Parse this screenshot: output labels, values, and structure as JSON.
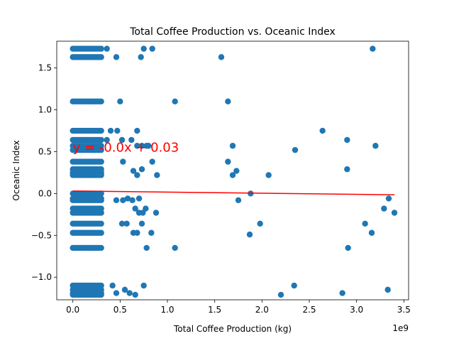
{
  "chart_data": {
    "type": "scatter",
    "title": "Total Coffee Production vs. Oceanic Index",
    "xlabel": "Total Coffee Production (kg)",
    "ylabel": "Oceanic Index",
    "x_offset_label": "1e9",
    "xlim": [
      -0.17,
      3.55
    ],
    "ylim": [
      -1.27,
      1.82
    ],
    "x_ticks": [
      0.0,
      0.5,
      1.0,
      1.5,
      2.0,
      2.5,
      3.0,
      3.5
    ],
    "x_tick_labels": [
      "0.0",
      "0.5",
      "1.0",
      "1.5",
      "2.0",
      "2.5",
      "3.0",
      "3.5"
    ],
    "y_ticks": [
      -1.0,
      -0.5,
      0.0,
      0.5,
      1.0,
      1.5
    ],
    "y_tick_labels": [
      "−1.0",
      "−0.5",
      "0.0",
      "0.5",
      "1.0",
      "1.5"
    ],
    "grid": false,
    "point_color": "#1f77b4",
    "line_color": "#ff0000",
    "annotation": {
      "text": "y = -0.0x + 0.03",
      "x": 0.0,
      "y": 0.5,
      "color": "#ff0000"
    },
    "regression": {
      "slope": -0.0133,
      "intercept": 0.03,
      "x": [
        0.0,
        3.4
      ]
    },
    "cluster_y_levels": [
      1.73,
      1.63,
      1.1,
      0.75,
      0.64,
      0.57,
      0.52,
      0.38,
      0.29,
      0.25,
      0.22,
      0.0,
      -0.06,
      -0.08,
      -0.18,
      -0.23,
      -0.36,
      -0.47,
      -0.65,
      -1.1,
      -1.15,
      -1.19,
      -1.21
    ],
    "cluster_x_range": [
      0.0,
      0.3
    ],
    "points": [
      [
        0.36,
        1.73
      ],
      [
        0.46,
        1.63
      ],
      [
        0.72,
        1.63
      ],
      [
        0.75,
        1.73
      ],
      [
        0.84,
        1.73
      ],
      [
        1.57,
        1.63
      ],
      [
        3.17,
        1.73
      ],
      [
        0.5,
        1.1
      ],
      [
        1.08,
        1.1
      ],
      [
        1.64,
        1.1
      ],
      [
        0.4,
        0.75
      ],
      [
        0.47,
        0.75
      ],
      [
        0.68,
        0.75
      ],
      [
        2.64,
        0.75
      ],
      [
        0.36,
        0.64
      ],
      [
        0.52,
        0.64
      ],
      [
        0.62,
        0.64
      ],
      [
        0.68,
        0.57
      ],
      [
        0.73,
        0.57
      ],
      [
        0.78,
        0.57
      ],
      [
        0.8,
        0.57
      ],
      [
        1.69,
        0.57
      ],
      [
        2.35,
        0.52
      ],
      [
        2.9,
        0.64
      ],
      [
        3.2,
        0.57
      ],
      [
        0.53,
        0.38
      ],
      [
        0.64,
        0.27
      ],
      [
        0.68,
        0.22
      ],
      [
        0.73,
        0.29
      ],
      [
        0.84,
        0.38
      ],
      [
        0.89,
        0.22
      ],
      [
        1.64,
        0.38
      ],
      [
        1.69,
        0.22
      ],
      [
        1.73,
        0.27
      ],
      [
        2.07,
        0.22
      ],
      [
        2.9,
        0.29
      ],
      [
        0.46,
        -0.08
      ],
      [
        0.53,
        -0.08
      ],
      [
        0.58,
        -0.06
      ],
      [
        0.63,
        -0.08
      ],
      [
        0.66,
        -0.18
      ],
      [
        0.7,
        -0.06
      ],
      [
        0.7,
        -0.23
      ],
      [
        0.74,
        -0.23
      ],
      [
        0.77,
        -0.18
      ],
      [
        0.88,
        -0.23
      ],
      [
        1.75,
        -0.08
      ],
      [
        1.88,
        0.0
      ],
      [
        3.29,
        -0.18
      ],
      [
        3.34,
        -0.06
      ],
      [
        3.4,
        -0.23
      ],
      [
        0.52,
        -0.36
      ],
      [
        0.57,
        -0.36
      ],
      [
        0.64,
        -0.47
      ],
      [
        0.68,
        -0.47
      ],
      [
        0.73,
        -0.36
      ],
      [
        0.83,
        -0.47
      ],
      [
        1.87,
        -0.49
      ],
      [
        1.98,
        -0.36
      ],
      [
        3.09,
        -0.36
      ],
      [
        3.16,
        -0.47
      ],
      [
        0.78,
        -0.65
      ],
      [
        1.08,
        -0.65
      ],
      [
        2.91,
        -0.65
      ],
      [
        0.42,
        -1.1
      ],
      [
        0.46,
        -1.19
      ],
      [
        0.55,
        -1.15
      ],
      [
        0.6,
        -1.19
      ],
      [
        0.66,
        -1.21
      ],
      [
        0.75,
        -1.1
      ],
      [
        2.2,
        -1.21
      ],
      [
        2.34,
        -1.1
      ],
      [
        2.85,
        -1.19
      ],
      [
        3.33,
        -1.15
      ]
    ]
  }
}
